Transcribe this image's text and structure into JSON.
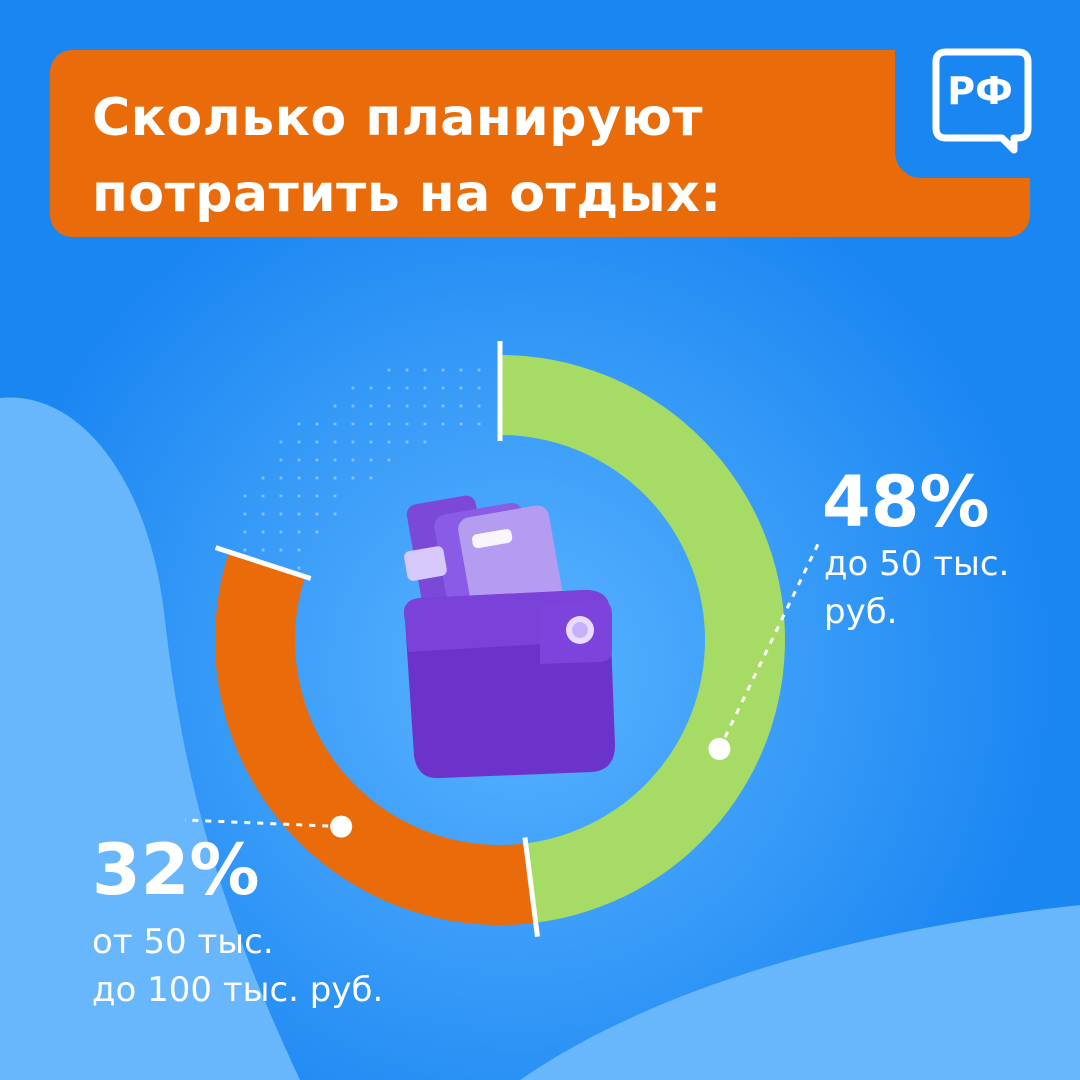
{
  "header": {
    "title_line1": "Сколько планируют",
    "title_line2": "потратить на отдых:",
    "logo_text": "РФ"
  },
  "colors": {
    "background": "#1a86f2",
    "title_box": "#ea6b0a",
    "green_segment": "#a6dc65",
    "orange_segment": "#ea6b0a",
    "wallet": "#6b33c9"
  },
  "icons": {
    "center": "wallet-icon",
    "logo": "chat-bubble-logo"
  },
  "chart_data": {
    "type": "pie",
    "title": "Сколько планируют потратить на отдых:",
    "slices": [
      {
        "value": 48,
        "label": "48%",
        "description": [
          "до 50 тыс.",
          "руб."
        ],
        "color": "#a6dc65"
      },
      {
        "value": 32,
        "label": "32%",
        "description": [
          "от 50 тыс.",
          "до 100 тыс. руб."
        ],
        "color": "#ea6b0a"
      }
    ],
    "unit": "%"
  }
}
